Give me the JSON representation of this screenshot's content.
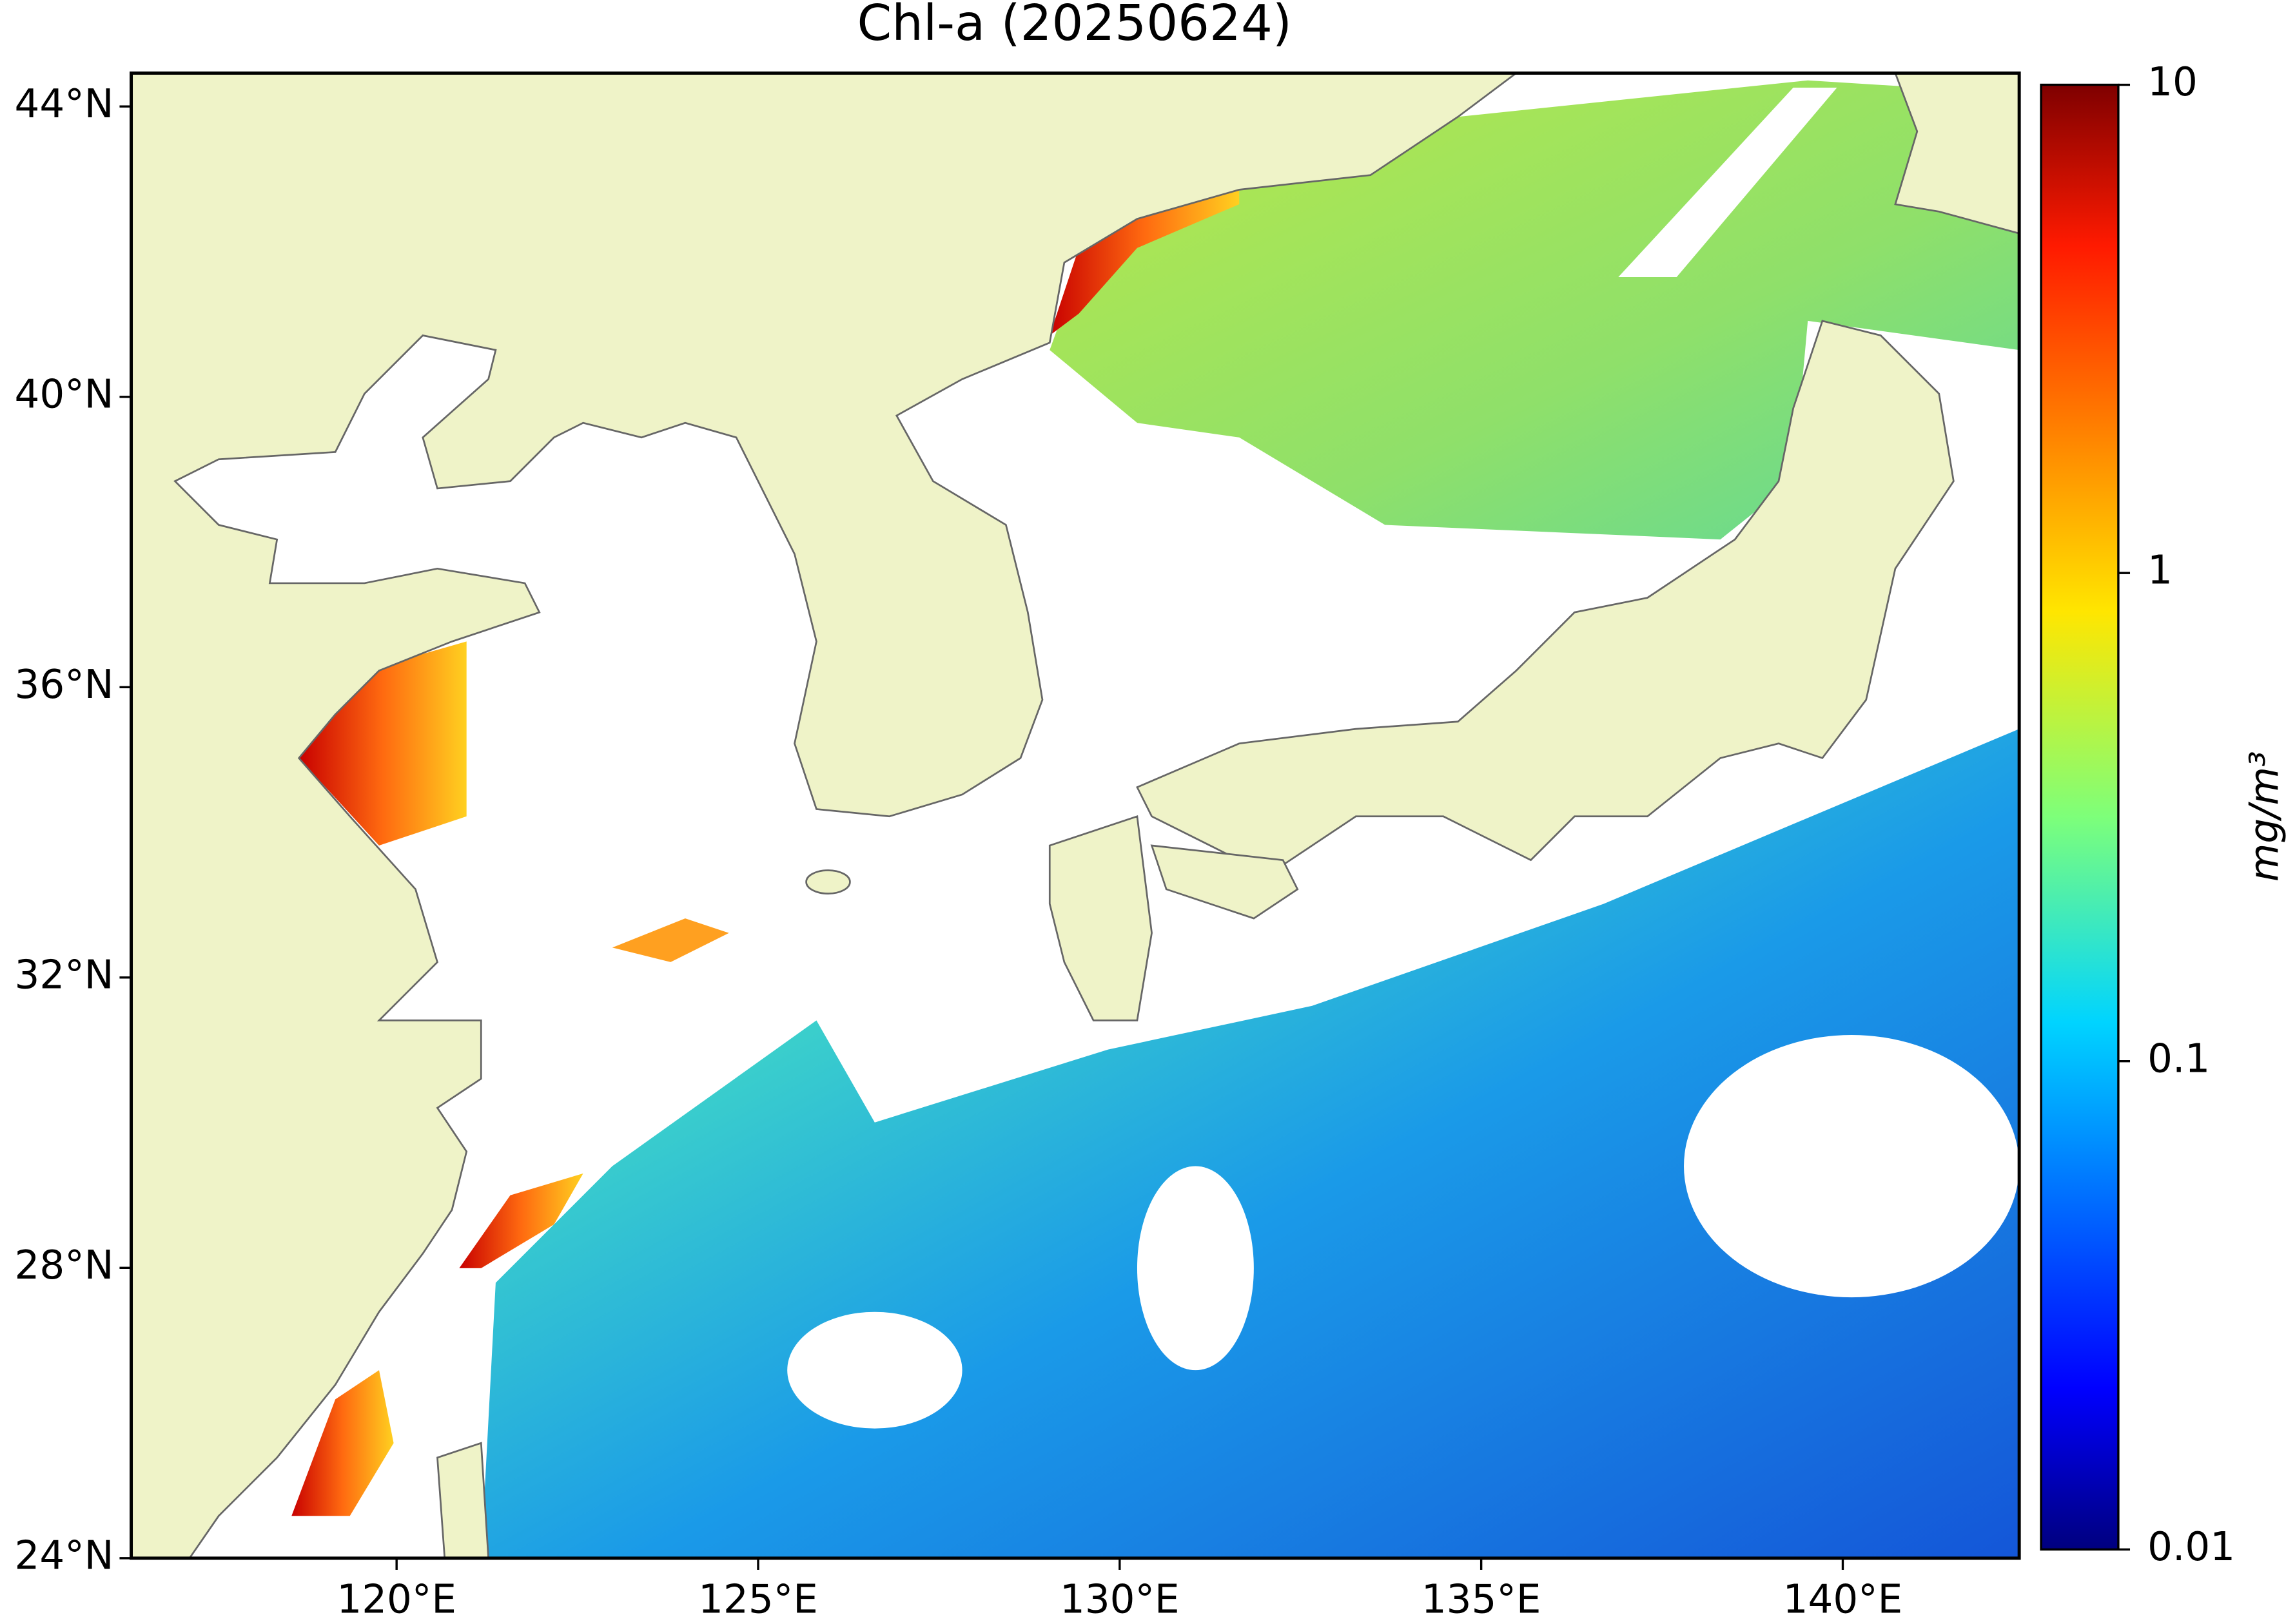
{
  "chart_data": {
    "type": "map",
    "title": "Chl-a (20250624)",
    "xlim": [
      116.33,
      142.44
    ],
    "ylim": [
      24,
      44.46
    ],
    "xticks": [
      {
        "value": 120,
        "label": "120°E"
      },
      {
        "value": 125,
        "label": "125°E"
      },
      {
        "value": 130,
        "label": "130°E"
      },
      {
        "value": 135,
        "label": "135°E"
      },
      {
        "value": 140,
        "label": "140°E"
      }
    ],
    "yticks": [
      {
        "value": 24,
        "label": "24°N"
      },
      {
        "value": 28,
        "label": "28°N"
      },
      {
        "value": 32,
        "label": "32°N"
      },
      {
        "value": 36,
        "label": "36°N"
      },
      {
        "value": 40,
        "label": "40°N"
      },
      {
        "value": 44,
        "label": "44°N"
      }
    ],
    "colorbar": {
      "label": "mg/m³",
      "scale": "log",
      "lim": [
        0.01,
        10
      ],
      "ticks": [
        0.01,
        0.1,
        1,
        10
      ],
      "colormap": "jet"
    }
  }
}
